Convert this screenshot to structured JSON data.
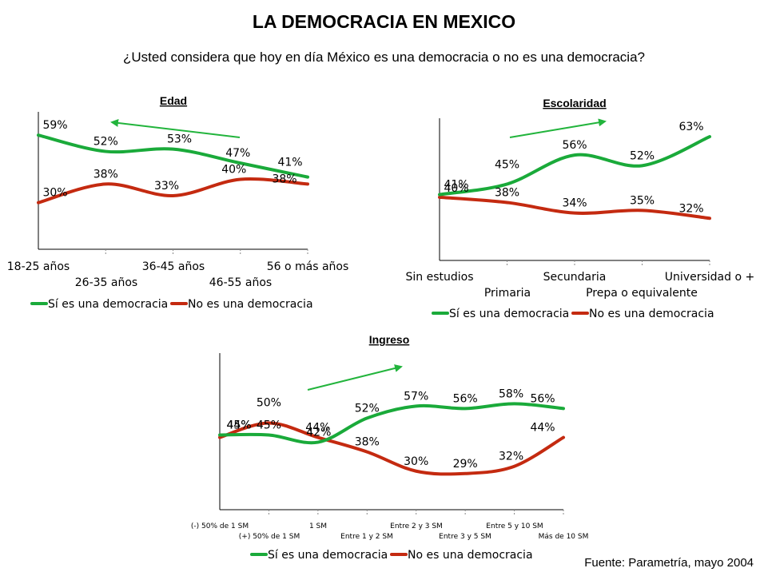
{
  "title": "LA DEMOCRACIA EN MEXICO",
  "subtitle": "¿Usted considera que hoy en día México es una democracia o no es una democracia?",
  "source": "Fuente: Parametría, mayo 2004",
  "colors": {
    "si": "#1aaa3a",
    "no": "#c42a10",
    "arrow": "#22b43c",
    "axis": "#000000"
  },
  "chart_data": [
    {
      "type": "line",
      "title": "Edad",
      "categories": [
        "18-25 años",
        "26-35 años",
        "36-45 años",
        "46-55 años",
        "56 o más años"
      ],
      "series": [
        {
          "name": "Sí es una democracia",
          "values": [
            59,
            52,
            53,
            47,
            41
          ]
        },
        {
          "name": "No es una democracia",
          "values": [
            30,
            38,
            33,
            40,
            38
          ]
        }
      ],
      "labels_si": [
        "59%",
        "52%",
        "53%",
        "47%",
        "41%"
      ],
      "labels_no": [
        "30%",
        "38%",
        "33%",
        "40%",
        "38%"
      ],
      "legend": "bottom"
    },
    {
      "type": "line",
      "title": "Escolaridad",
      "categories": [
        "Sin estudios",
        "Primaria",
        "Secundaria",
        "Prepa o equivalente",
        "Universidad o +"
      ],
      "series": [
        {
          "name": "Sí es una democracia",
          "values": [
            41,
            45,
            56,
            52,
            63
          ]
        },
        {
          "name": "No es una democracia",
          "values": [
            40,
            38,
            34,
            35,
            32
          ]
        }
      ],
      "labels_si": [
        "41%",
        "45%",
        "56%",
        "52%",
        "63%"
      ],
      "labels_no": [
        "40%",
        "38%",
        "34%",
        "35%",
        "32%"
      ],
      "legend": "bottom"
    },
    {
      "type": "line",
      "title": "Ingreso",
      "categories": [
        "(-) 50% de 1 SM",
        "(+) 50% de 1 SM",
        "1 SM",
        "Entre 1 y 2 SM",
        "Entre 2 y 3 SM",
        "Entre 3 y 5 SM",
        "Entre 5 y 10 SM",
        "Más de 10 SM"
      ],
      "series": [
        {
          "name": "Sí es una democracia",
          "values": [
            45,
            45,
            42,
            52,
            57,
            56,
            58,
            56
          ]
        },
        {
          "name": "No es una democracia",
          "values": [
            44,
            50,
            44,
            38,
            30,
            29,
            32,
            44
          ]
        }
      ],
      "labels_si": [
        "45%",
        "45%",
        "42%",
        "52%",
        "57%",
        "56%",
        "58%",
        "56%"
      ],
      "labels_no": [
        "44%",
        "50%",
        "44%",
        "38%",
        "30%",
        "29%",
        "32%",
        "44%"
      ],
      "legend": "bottom"
    }
  ]
}
